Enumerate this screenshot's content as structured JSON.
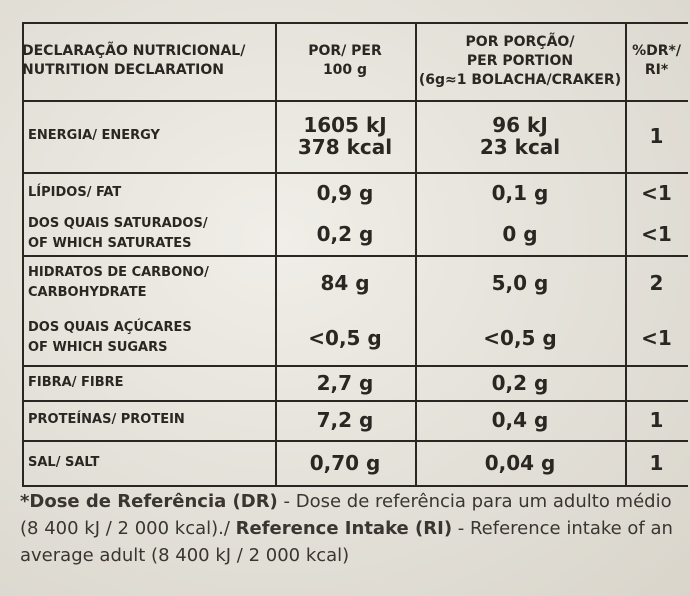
{
  "table": {
    "header": [
      [
        "DECLARAÇÃO NUTRICIONAL/",
        "NUTRITION DECLARATION"
      ],
      [
        "POR/ PER",
        "100 g"
      ],
      [
        "POR PORÇÃO/",
        "PER PORTION",
        "(6g≈1 BOLACHA/CRAKER)"
      ],
      [
        "%DR*/",
        "RI*"
      ]
    ],
    "groups": [
      {
        "rows": [
          {
            "label": [
              "ENERGIA/ ENERGY"
            ],
            "per100": [
              "1605 kJ",
              "378 kcal"
            ],
            "portion": [
              "96 kJ",
              "23 kcal"
            ],
            "ri": "1"
          }
        ]
      },
      {
        "rows": [
          {
            "label": [
              "LÍPIDOS/ FAT"
            ],
            "per100": [
              "0,9 g"
            ],
            "portion": [
              "0,1 g"
            ],
            "ri": "<1"
          },
          {
            "label": [
              "DOS QUAIS SATURADOS/",
              "OF WHICH SATURATES"
            ],
            "per100": [
              "0,2 g"
            ],
            "portion": [
              "0 g"
            ],
            "ri": "<1"
          }
        ]
      },
      {
        "rows": [
          {
            "label": [
              "HIDRATOS DE CARBONO/",
              "CARBOHYDRATE"
            ],
            "per100": [
              "84 g"
            ],
            "portion": [
              "5,0 g"
            ],
            "ri": "2"
          },
          {
            "label": [
              "DOS QUAIS AÇÚCARES",
              "OF WHICH SUGARS"
            ],
            "per100": [
              "<0,5 g"
            ],
            "portion": [
              "<0,5 g"
            ],
            "ri": "<1"
          }
        ]
      },
      {
        "rows": [
          {
            "label": [
              "FIBRA/ FIBRE"
            ],
            "per100": [
              "2,7 g"
            ],
            "portion": [
              "0,2 g"
            ],
            "ri": null
          }
        ]
      },
      {
        "rows": [
          {
            "label": [
              "PROTEÍNAS/ PROTEIN"
            ],
            "per100": [
              "7,2 g"
            ],
            "portion": [
              "0,4 g"
            ],
            "ri": "1"
          }
        ]
      },
      {
        "rows": [
          {
            "label": [
              "SAL/ SALT"
            ],
            "per100": [
              "0,70 g"
            ],
            "portion": [
              "0,04 g"
            ],
            "ri": "1"
          }
        ]
      }
    ]
  },
  "footnote": [
    "*Dose de Referência (DR)",
    " - Dose de referência para um adulto médio (8 400 kJ / 2 000 kcal)./ ",
    "Reference Intake (RI)",
    " - Reference intake of an average adult (8 400 kJ / 2 000 kcal)"
  ]
}
